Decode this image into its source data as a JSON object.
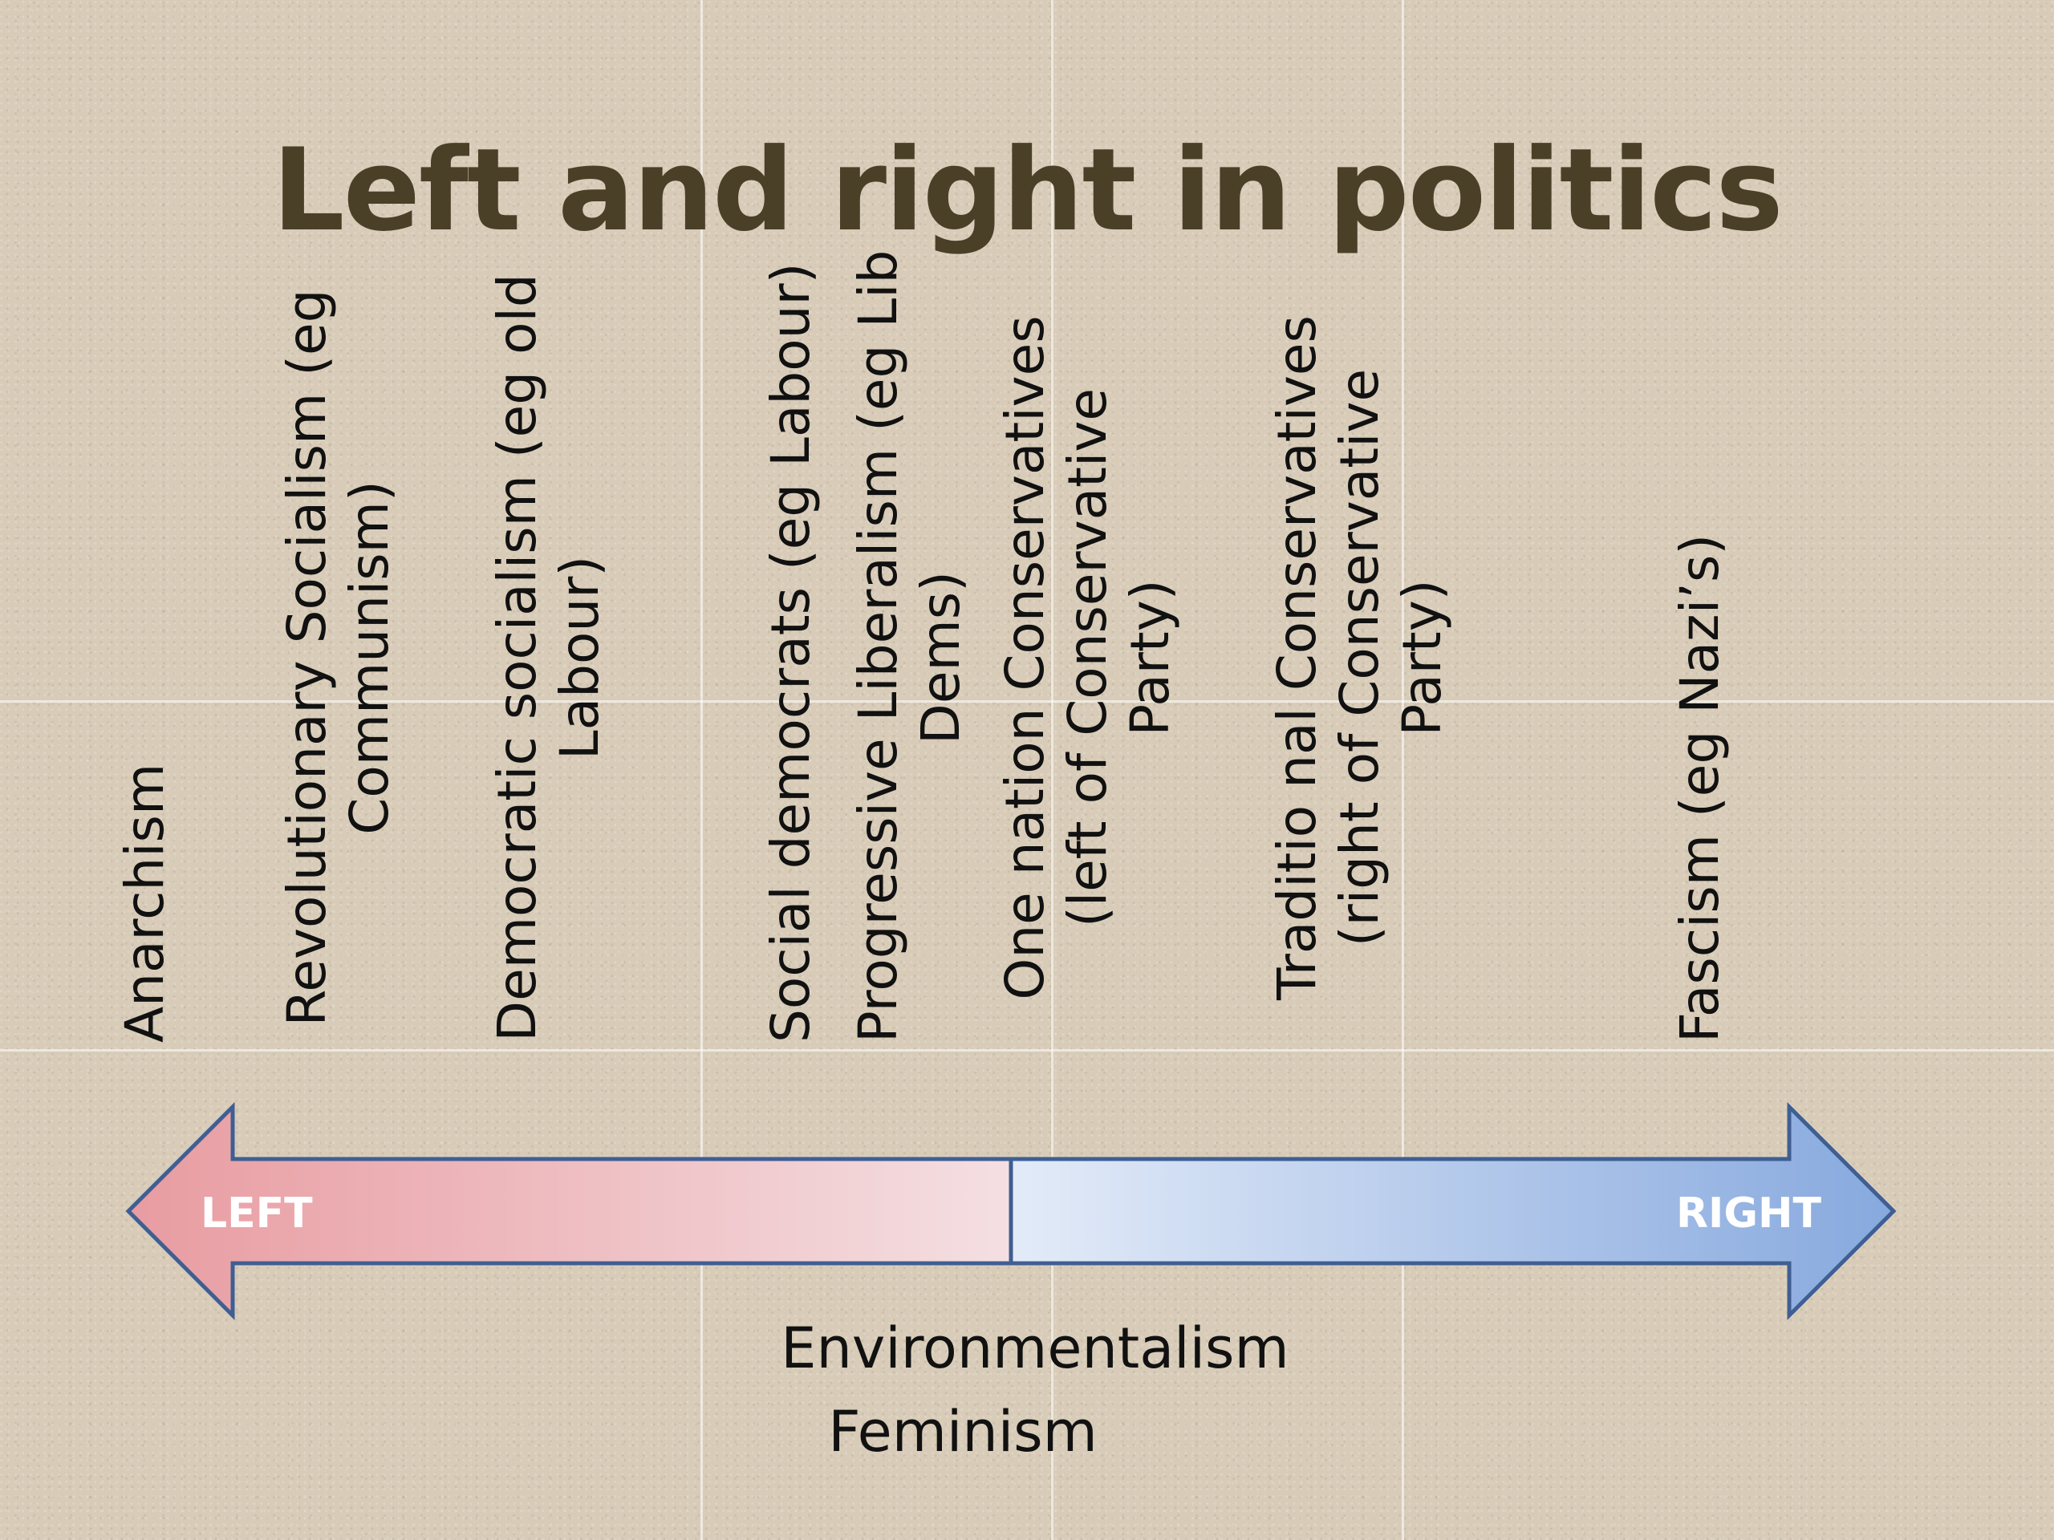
{
  "slide": {
    "title": "Left and right in politics",
    "terms": [
      {
        "label": "Anarchism"
      },
      {
        "label": "Revolutionary Socialism (eg\nCommunism)"
      },
      {
        "label": "Democratic socialism (eg old\nLabour)"
      },
      {
        "label": "Social democrats  (eg Labour)"
      },
      {
        "label": "Progressive Liberalism (eg Lib\nDems)"
      },
      {
        "label": "One nation Conservatives\n(left of Conservative\nParty)"
      },
      {
        "label": "Traditio nal Conservatives\n(right of Conservative\nParty)"
      },
      {
        "label": "Fascism (eg Nazi’s)"
      }
    ],
    "axis": {
      "left_label": "LEFT",
      "right_label": "RIGHT",
      "left_color": "#e8a0a4",
      "right_color": "#8aaee0",
      "outline_color": "#3f5f93"
    },
    "below_axis": [
      "Environmentalism",
      "Feminism"
    ]
  }
}
